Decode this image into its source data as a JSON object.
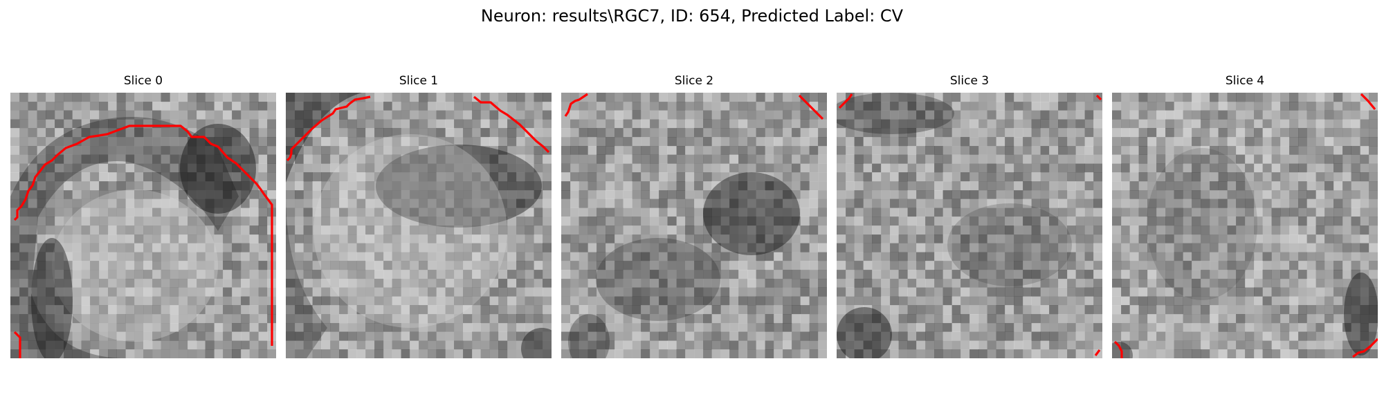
{
  "figure": {
    "title": "Neuron: results\\RGC7, ID: 654, Predicted Label: CV"
  },
  "colors": {
    "background": "#ffffff",
    "contour": "#ff0000"
  },
  "slices": [
    {
      "title": "Slice 0"
    },
    {
      "title": "Slice 1"
    },
    {
      "title": "Slice 2"
    },
    {
      "title": "Slice 3"
    },
    {
      "title": "Slice 4"
    }
  ]
}
